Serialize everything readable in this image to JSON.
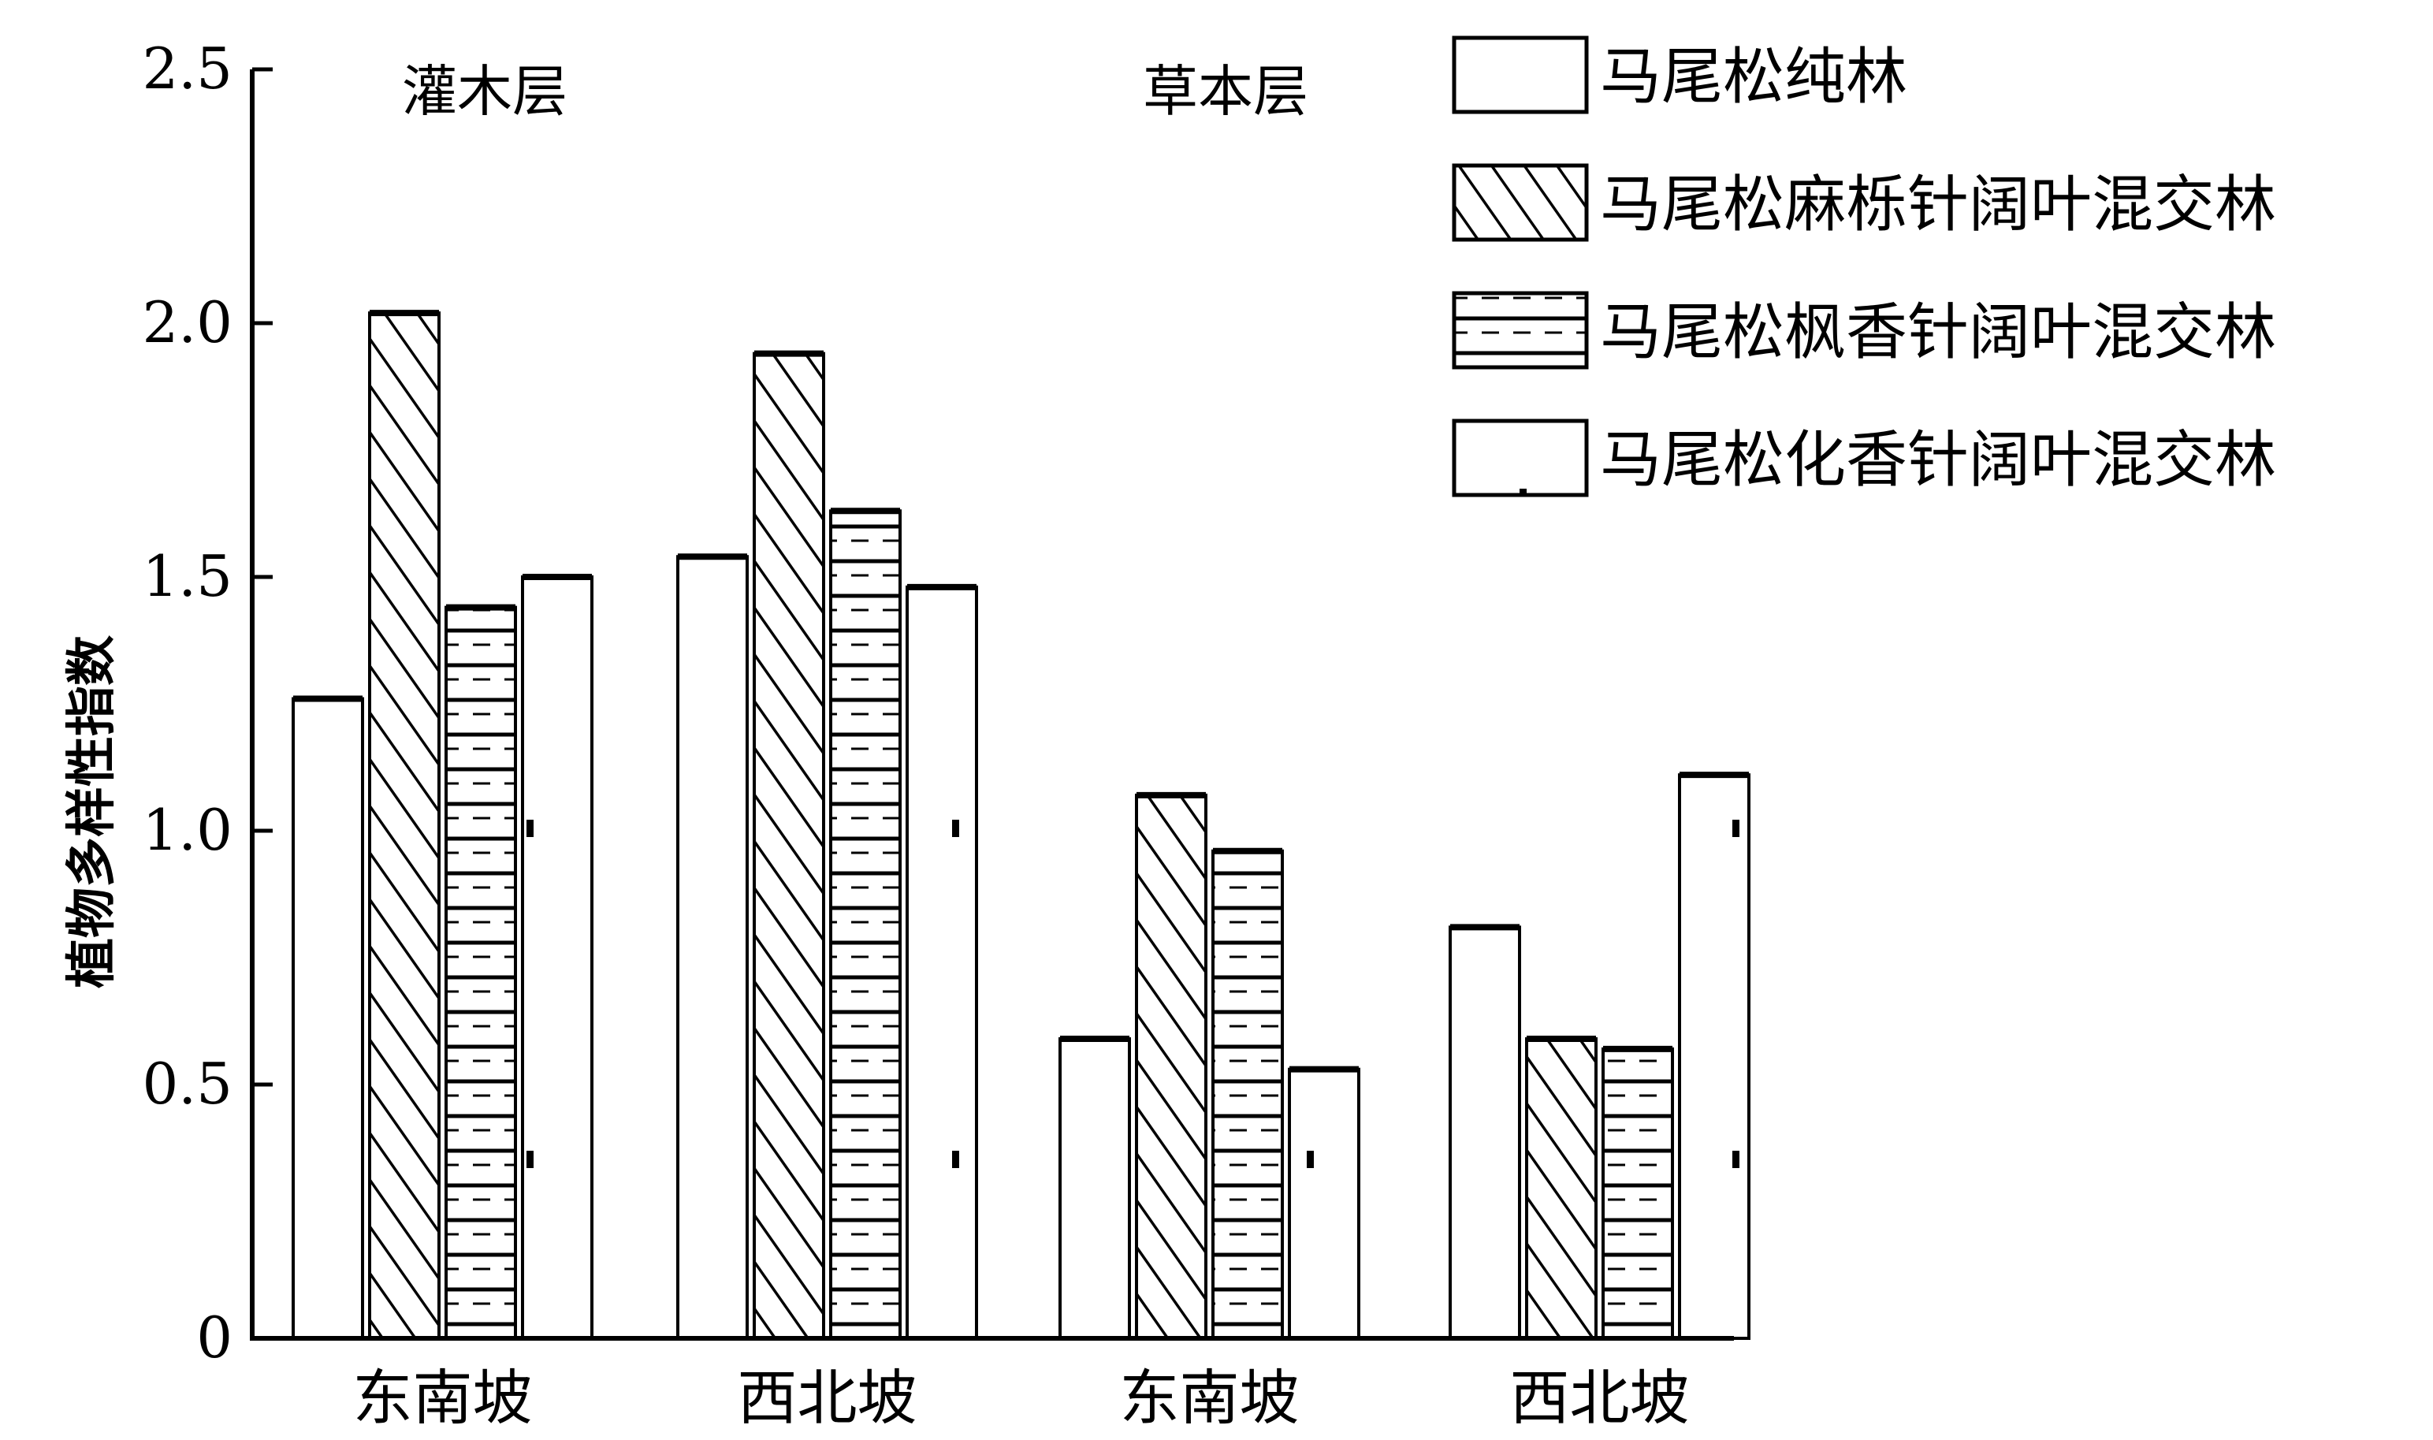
{
  "chart_data": {
    "type": "bar",
    "title": "",
    "ylabel": "植物多样性指数",
    "ylim": [
      0,
      2.5
    ],
    "yticks": [
      0,
      0.5,
      1.0,
      1.5,
      2.0,
      2.5
    ],
    "ytick_labels": [
      "0",
      "0.5",
      "1.0",
      "1.5",
      "2.0",
      "2.5"
    ],
    "layers": [
      "灌木层",
      "草本层"
    ],
    "categories": [
      "东南坡",
      "西北坡",
      "东南坡",
      "西北坡"
    ],
    "category_layer": [
      0,
      0,
      1,
      1
    ],
    "series": [
      {
        "name": "马尾松纯林",
        "pattern": "plain",
        "values": [
          1.26,
          1.54,
          0.59,
          0.81
        ]
      },
      {
        "name": "马尾松麻栎针阔叶混交林",
        "pattern": "diagonal",
        "values": [
          2.02,
          1.94,
          1.07,
          0.59
        ]
      },
      {
        "name": "马尾松枫香针阔叶混交林",
        "pattern": "horizontal",
        "values": [
          1.44,
          1.63,
          0.96,
          0.57
        ]
      },
      {
        "name": "马尾松化香针阔叶混交林",
        "pattern": "dotted",
        "values": [
          1.5,
          1.48,
          0.53,
          1.11
        ]
      }
    ],
    "legend_position": "top-right",
    "grid": false
  }
}
